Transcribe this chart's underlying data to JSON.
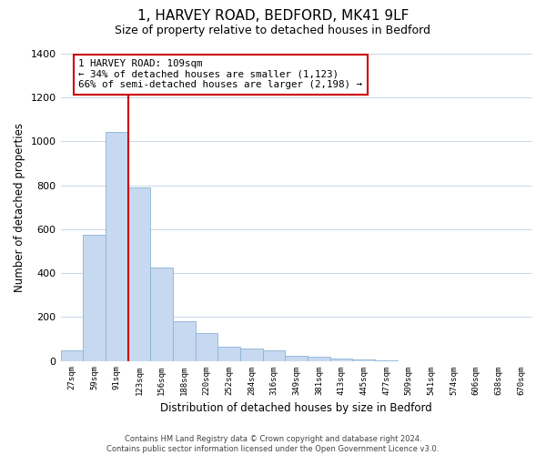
{
  "title": "1, HARVEY ROAD, BEDFORD, MK41 9LF",
  "subtitle": "Size of property relative to detached houses in Bedford",
  "xlabel": "Distribution of detached houses by size in Bedford",
  "ylabel": "Number of detached properties",
  "bar_labels": [
    "27sqm",
    "59sqm",
    "91sqm",
    "123sqm",
    "156sqm",
    "188sqm",
    "220sqm",
    "252sqm",
    "284sqm",
    "316sqm",
    "349sqm",
    "381sqm",
    "413sqm",
    "445sqm",
    "477sqm",
    "509sqm",
    "541sqm",
    "574sqm",
    "606sqm",
    "638sqm",
    "670sqm"
  ],
  "bar_values": [
    50,
    575,
    1045,
    790,
    425,
    180,
    125,
    65,
    55,
    50,
    25,
    20,
    10,
    5,
    3,
    0,
    0,
    0,
    0,
    0,
    0
  ],
  "bar_color": "#c6d9f0",
  "bar_edge_color": "#8ab4d4",
  "vline_color": "#cc0000",
  "annotation_title": "1 HARVEY ROAD: 109sqm",
  "annotation_line1": "← 34% of detached houses are smaller (1,123)",
  "annotation_line2": "66% of semi-detached houses are larger (2,198) →",
  "annotation_box_color": "#ffffff",
  "annotation_box_edge": "#cc0000",
  "ylim": [
    0,
    1400
  ],
  "yticks": [
    0,
    200,
    400,
    600,
    800,
    1000,
    1200,
    1400
  ],
  "footer_line1": "Contains HM Land Registry data © Crown copyright and database right 2024.",
  "footer_line2": "Contains public sector information licensed under the Open Government Licence v3.0.",
  "background_color": "#ffffff",
  "grid_color": "#c8d8ea"
}
